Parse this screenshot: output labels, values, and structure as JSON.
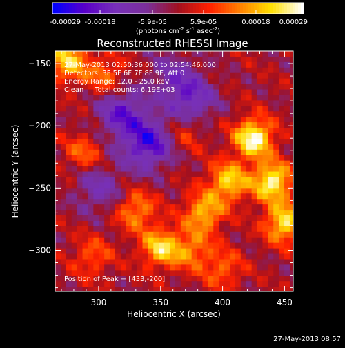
{
  "colorbar": {
    "tick_labels": [
      "-0.00029",
      "-0.00018",
      "-5.9e-05",
      "5.9e-05",
      "0.00018",
      "0.00029"
    ],
    "tick_values": [
      -0.00029,
      -0.00018,
      -5.9e-05,
      5.9e-05,
      0.00018,
      0.00029
    ],
    "range": [
      -0.00029,
      0.00029
    ],
    "unit_label": "(photons cm^-2 s^-1 asec^-2)",
    "colors": [
      "#0000ff",
      "#5a00c8",
      "#7830b8",
      "#7a2f9a",
      "#a01020",
      "#ff2000",
      "#ff8000",
      "#ffe000",
      "#ffffff"
    ]
  },
  "chart_data": {
    "type": "heatmap",
    "title": "Reconstructed RHESSI Image",
    "xlabel": "Heliocentric X (arcsec)",
    "ylabel": "Heliocentric Y (arcsec)",
    "xlim": [
      265,
      457
    ],
    "ylim": [
      -333,
      -140
    ],
    "xticks": [
      300,
      350,
      400,
      450
    ],
    "yticks": [
      -150,
      -200,
      -250,
      -300
    ],
    "peak": [
      433,
      -200
    ],
    "sources": [
      {
        "x": 425,
        "y": -210,
        "value": 0.00029
      },
      {
        "x": 440,
        "y": -245,
        "value": 0.00027
      },
      {
        "x": 450,
        "y": -278,
        "value": 0.00024
      },
      {
        "x": 405,
        "y": -245,
        "value": 0.00022
      },
      {
        "x": 385,
        "y": -270,
        "value": 0.0002
      },
      {
        "x": 350,
        "y": -298,
        "value": 0.00022
      },
      {
        "x": 375,
        "y": -300,
        "value": 0.00014
      },
      {
        "x": 330,
        "y": -268,
        "value": 0.00016
      },
      {
        "x": 275,
        "y": -148,
        "value": 0.00022
      },
      {
        "x": 305,
        "y": -160,
        "value": 0.00013
      },
      {
        "x": 288,
        "y": -222,
        "value": 0.00012
      },
      {
        "x": 295,
        "y": -305,
        "value": 0.00011
      },
      {
        "x": 400,
        "y": -315,
        "value": 0.00012
      },
      {
        "x": 370,
        "y": -205,
        "value": 9e-05
      },
      {
        "x": 340,
        "y": -215,
        "value": -0.00022
      },
      {
        "x": 318,
        "y": -190,
        "value": -0.00018
      },
      {
        "x": 375,
        "y": -180,
        "value": -0.00016
      },
      {
        "x": 300,
        "y": -250,
        "value": -0.00012
      },
      {
        "x": 360,
        "y": -160,
        "value": -0.0001
      }
    ],
    "annotations": [
      "27-May-2013 02:50:36.000 to 02:54:46.000",
      "Detectors: 3F 5F 6F 7F 8F 9F, Att 0",
      "Energy Range: 12.0 - 25.0 keV",
      "Clean     Total counts: 6.19E+03"
    ],
    "peak_label": "Position of Peak = [433,-200]"
  },
  "footer_timestamp": "27-May-2013 08:57"
}
